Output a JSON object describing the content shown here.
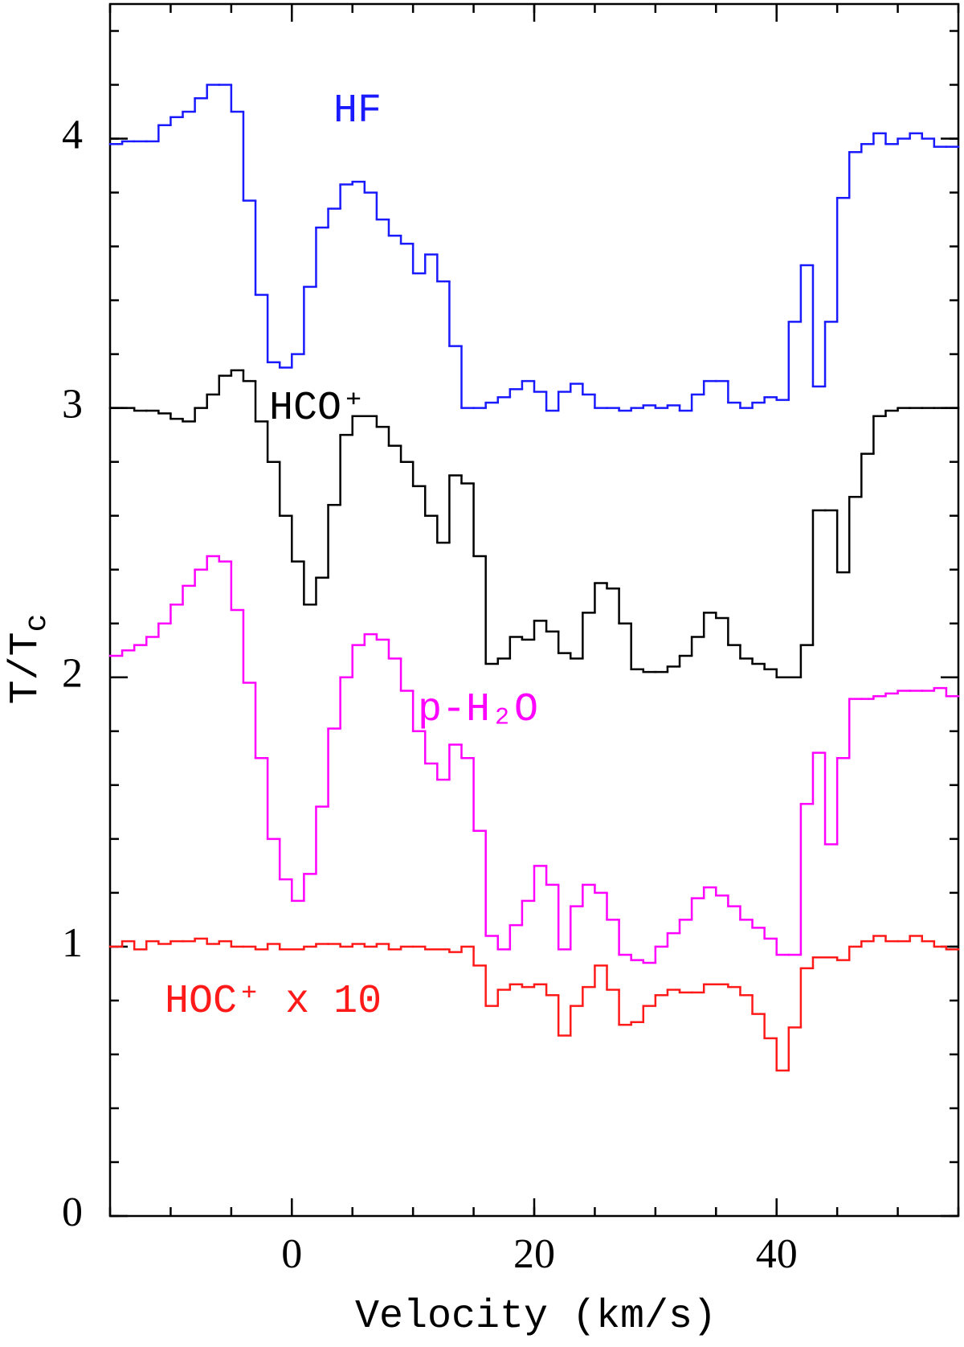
{
  "chart_data": {
    "type": "step",
    "xlabel": "Velocity (km/s)",
    "ylabel": {
      "text": "T/T",
      "subscript": "c"
    },
    "xlim": [
      -15,
      55
    ],
    "xticks": [
      0,
      20,
      40
    ],
    "ylim": [
      0,
      4.5
    ],
    "yticks": [
      0,
      1,
      2,
      3,
      4
    ],
    "x": [
      -14.5,
      -13.5,
      -12.5,
      -11.5,
      -10.5,
      -9.5,
      -8.5,
      -7.5,
      -6.5,
      -5.5,
      -4.5,
      -3.5,
      -2.5,
      -1.5,
      -0.5,
      0.5,
      1.5,
      2.5,
      3.5,
      4.5,
      5.5,
      6.5,
      7.5,
      8.5,
      9.5,
      10.5,
      11.5,
      12.5,
      13.5,
      14.5,
      15.5,
      16.5,
      17.5,
      18.5,
      19.5,
      20.5,
      21.5,
      22.5,
      23.5,
      24.5,
      25.5,
      26.5,
      27.5,
      28.5,
      29.5,
      30.5,
      31.5,
      32.5,
      33.5,
      34.5,
      35.5,
      36.5,
      37.5,
      38.5,
      39.5,
      40.5,
      41.5,
      42.5,
      43.5,
      44.5,
      45.5,
      46.5,
      47.5,
      48.5,
      49.5,
      50.5,
      51.5,
      52.5,
      53.5,
      54.5
    ],
    "series": [
      {
        "name": "HF",
        "color": "#1a1aff",
        "values": [
          3.98,
          3.99,
          3.99,
          3.99,
          4.05,
          4.08,
          4.1,
          4.15,
          4.2,
          4.2,
          4.1,
          3.77,
          3.42,
          3.17,
          3.15,
          3.2,
          3.45,
          3.67,
          3.74,
          3.83,
          3.84,
          3.8,
          3.7,
          3.64,
          3.61,
          3.5,
          3.57,
          3.47,
          3.23,
          3.0,
          3.0,
          3.02,
          3.04,
          3.07,
          3.1,
          3.06,
          2.99,
          3.06,
          3.09,
          3.05,
          3.0,
          3.0,
          2.99,
          3.0,
          3.01,
          3.0,
          3.01,
          2.99,
          3.05,
          3.1,
          3.1,
          3.02,
          3.0,
          3.02,
          3.04,
          3.03,
          3.32,
          3.53,
          3.08,
          3.32,
          3.78,
          3.95,
          3.98,
          4.02,
          3.98,
          4.0,
          4.02,
          4.0,
          3.97,
          3.97
        ]
      },
      {
        "name": "HCO⁺",
        "color": "#000000",
        "values": [
          3.0,
          3.0,
          2.99,
          2.99,
          2.98,
          2.96,
          2.95,
          3.0,
          3.05,
          3.12,
          3.14,
          3.1,
          2.95,
          2.8,
          2.6,
          2.43,
          2.27,
          2.37,
          2.64,
          2.9,
          2.97,
          2.97,
          2.93,
          2.86,
          2.8,
          2.71,
          2.6,
          2.5,
          2.75,
          2.72,
          2.45,
          2.05,
          2.07,
          2.15,
          2.14,
          2.21,
          2.17,
          2.09,
          2.07,
          2.24,
          2.35,
          2.33,
          2.2,
          2.03,
          2.02,
          2.02,
          2.04,
          2.08,
          2.15,
          2.24,
          2.22,
          2.12,
          2.07,
          2.05,
          2.03,
          2.0,
          2.0,
          2.12,
          2.62,
          2.62,
          2.39,
          2.67,
          2.83,
          2.97,
          2.99,
          3.0,
          3.0,
          3.0,
          3.0,
          3.0
        ]
      },
      {
        "name": "p-H₂O",
        "color": "#ff00ff",
        "values": [
          2.08,
          2.1,
          2.12,
          2.15,
          2.2,
          2.27,
          2.34,
          2.4,
          2.45,
          2.43,
          2.25,
          1.98,
          1.7,
          1.4,
          1.25,
          1.17,
          1.27,
          1.52,
          1.81,
          2.0,
          2.12,
          2.16,
          2.14,
          2.07,
          1.95,
          1.8,
          1.68,
          1.62,
          1.75,
          1.7,
          1.43,
          1.04,
          0.99,
          1.08,
          1.17,
          1.3,
          1.23,
          0.99,
          1.15,
          1.23,
          1.2,
          1.1,
          0.97,
          0.95,
          0.94,
          1.0,
          1.05,
          1.1,
          1.18,
          1.22,
          1.19,
          1.15,
          1.1,
          1.07,
          1.03,
          0.97,
          0.97,
          1.53,
          1.72,
          1.38,
          1.7,
          1.92,
          1.92,
          1.93,
          1.94,
          1.95,
          1.95,
          1.95,
          1.96,
          1.93
        ]
      },
      {
        "name": "HOC⁺ x 10",
        "color": "#ff1a1a",
        "values": [
          1.0,
          1.02,
          0.99,
          1.02,
          1.01,
          1.02,
          1.02,
          1.03,
          1.01,
          1.02,
          1.0,
          1.0,
          0.99,
          1.01,
          0.99,
          0.99,
          1.0,
          1.01,
          1.01,
          1.0,
          1.01,
          1.0,
          1.01,
          0.99,
          1.0,
          1.0,
          0.99,
          0.99,
          0.98,
          1.0,
          0.93,
          0.78,
          0.84,
          0.86,
          0.85,
          0.86,
          0.82,
          0.67,
          0.78,
          0.85,
          0.93,
          0.84,
          0.71,
          0.72,
          0.78,
          0.82,
          0.84,
          0.83,
          0.83,
          0.86,
          0.86,
          0.85,
          0.82,
          0.75,
          0.66,
          0.54,
          0.7,
          0.92,
          0.96,
          0.96,
          0.95,
          1.0,
          1.02,
          1.04,
          1.02,
          1.02,
          1.04,
          1.02,
          1.0,
          0.99
        ]
      }
    ]
  }
}
